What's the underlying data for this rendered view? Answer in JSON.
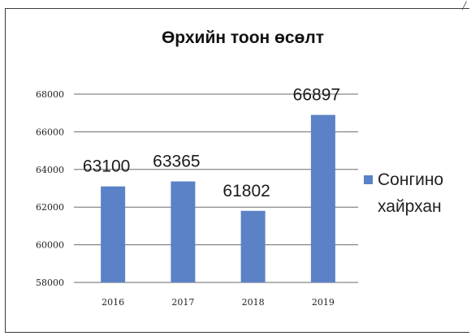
{
  "chart_data": {
    "type": "bar",
    "title": "Өрхийн тоон өсөлт",
    "categories": [
      "2016",
      "2017",
      "2018",
      "2019"
    ],
    "series": [
      {
        "name": "Сонгино хайрхан",
        "values": [
          63100,
          63365,
          61802,
          66897
        ]
      }
    ],
    "data_labels": [
      "63100",
      "63365",
      "61802",
      "66897"
    ],
    "y_ticks": [
      "58000",
      "60000",
      "62000",
      "64000",
      "66000",
      "68000"
    ],
    "ylim": [
      58000,
      68000
    ],
    "xlabel": "",
    "ylabel": "",
    "grid": true,
    "legend": [
      "Сонгино",
      "хайрхан"
    ],
    "legend_position": "right",
    "bar_color": "#5b82c7"
  }
}
